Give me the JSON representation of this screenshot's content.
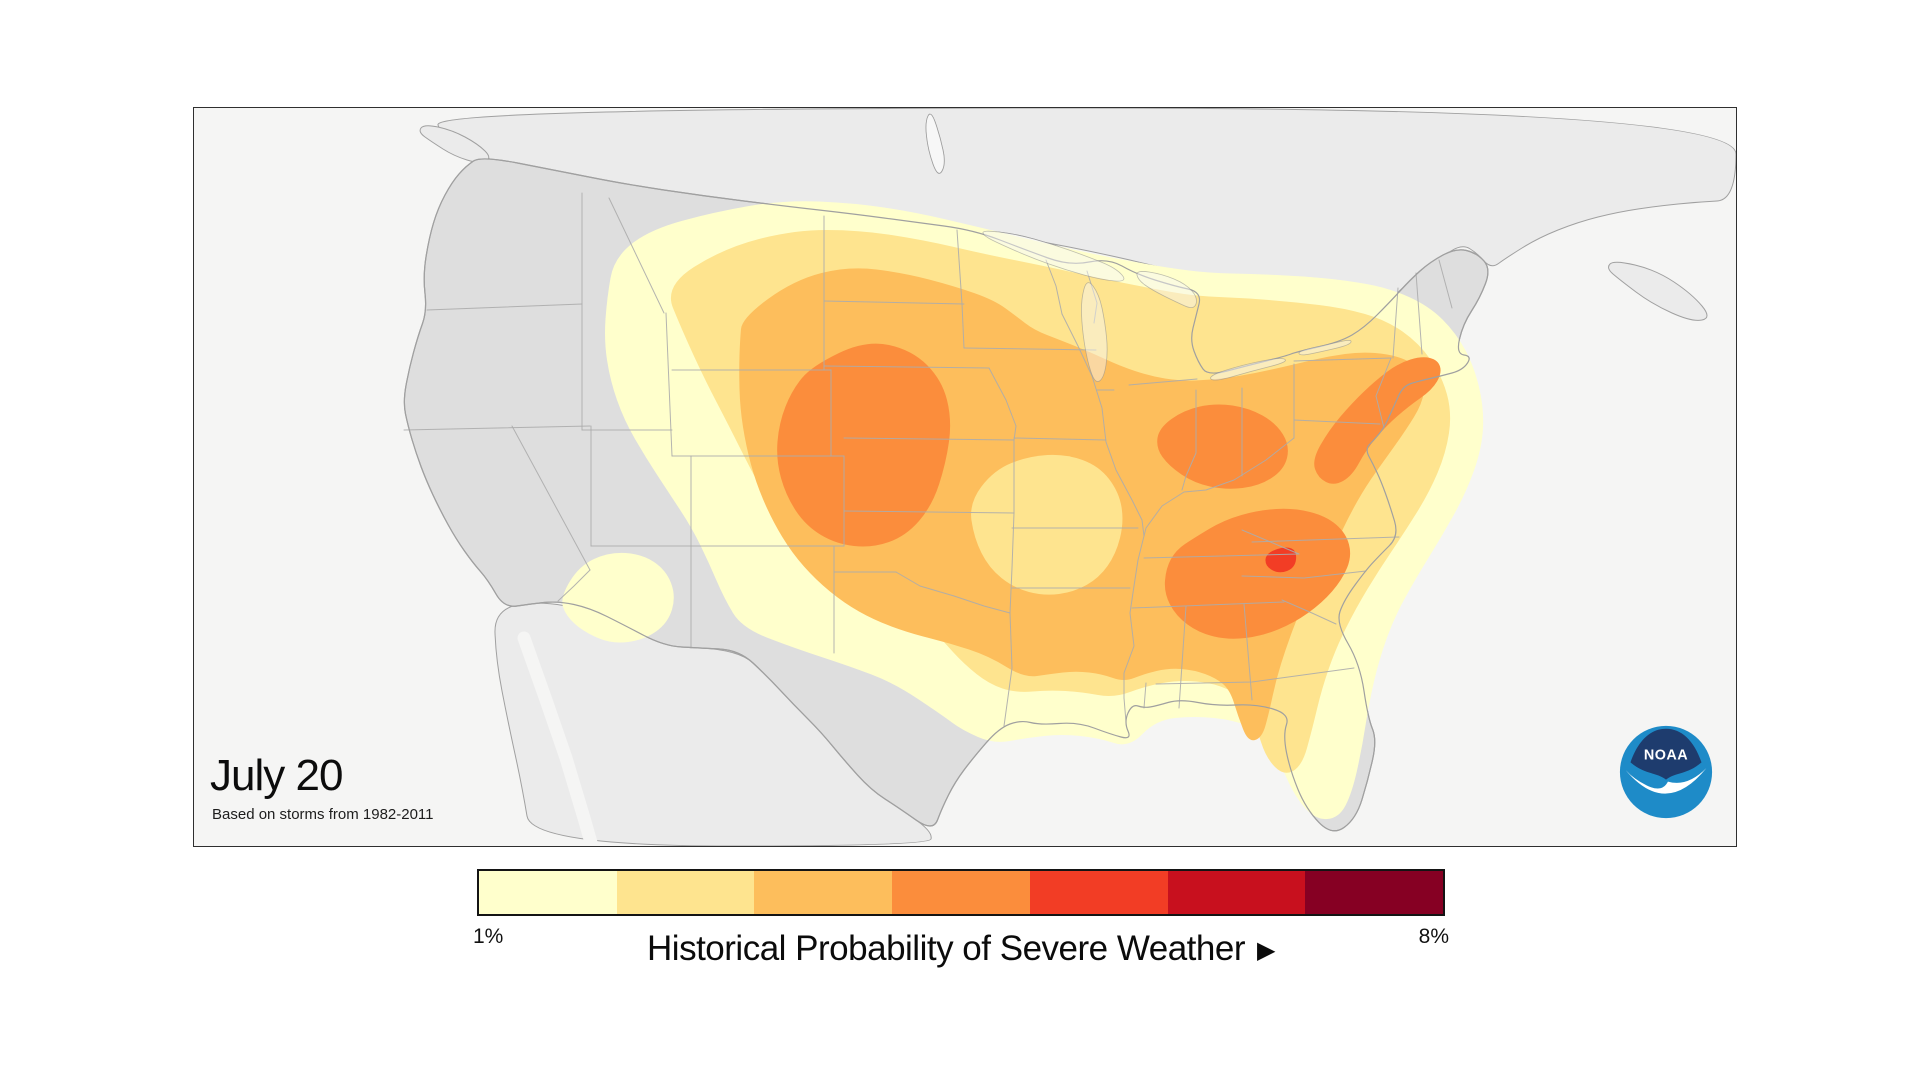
{
  "figure": {
    "date_label": "July 20",
    "source_note": "Based on storms from 1982-2011"
  },
  "legend": {
    "title": "Historical Probability of Severe Weather",
    "arrow_glyph": "▶",
    "min_label": "1%",
    "max_label": "8%",
    "levels": [
      {
        "percent": 1,
        "color": "#FFFFCC"
      },
      {
        "percent": 2,
        "color": "#FEE48F"
      },
      {
        "percent": 3,
        "color": "#FDBE5C"
      },
      {
        "percent": 4,
        "color": "#FB8D3C"
      },
      {
        "percent": 5,
        "color": "#F23D25"
      },
      {
        "percent": 6,
        "color": "#C8101E"
      },
      {
        "percent": 7,
        "color": "#860023"
      }
    ]
  },
  "logo": {
    "org": "NOAA"
  },
  "map": {
    "colors": {
      "sea": "#F5F5F4",
      "us_land": "#DEDEDE",
      "foreign_land": "#EBEBEB",
      "lake": "#F7F7F7",
      "coast": "#A0A0A0",
      "state_border": "#ACACAC",
      "logo_navy": "#1E3C6E",
      "logo_blue": "#1E8BC8"
    }
  }
}
